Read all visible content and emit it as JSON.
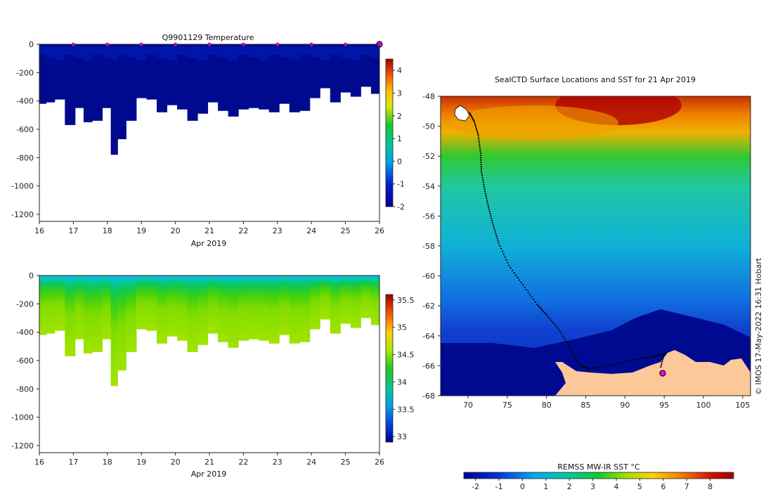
{
  "chart_data": [
    {
      "type": "heatmap",
      "title": "Q9901129  Temperature",
      "xlabel": "Apr 2019",
      "ylabel": "",
      "xlim": [
        16,
        26
      ],
      "ylim": [
        -1250,
        0
      ],
      "x_ticks": [
        "16",
        "17",
        "18",
        "19",
        "20",
        "21",
        "22",
        "23",
        "24",
        "25",
        "26"
      ],
      "y_ticks": [
        "0",
        "-200",
        "-400",
        "-600",
        "-800",
        "-1000",
        "-1200"
      ],
      "colorbar": {
        "range": [
          -2,
          4.5
        ],
        "ticks": [
          "4",
          "3",
          "2",
          "1",
          "0",
          "-1",
          "-2"
        ]
      },
      "profile_marker_days": [
        17,
        18,
        19,
        20,
        21,
        22,
        23,
        24,
        25
      ],
      "latest_profile_day": 26,
      "profile_days": [
        16.1,
        16.3,
        16.6,
        16.9,
        17.2,
        17.4,
        17.7,
        18.0,
        18.2,
        18.4,
        18.7,
        19.0,
        19.3,
        19.6,
        19.9,
        20.2,
        20.5,
        20.8,
        21.1,
        21.4,
        21.7,
        22.0,
        22.3,
        22.6,
        22.9,
        23.2,
        23.5,
        23.8,
        24.1,
        24.4,
        24.7,
        25.0,
        25.3,
        25.6,
        25.9
      ],
      "profile_max_depths": [
        420,
        410,
        390,
        570,
        450,
        550,
        540,
        450,
        780,
        670,
        540,
        380,
        390,
        480,
        430,
        460,
        540,
        490,
        410,
        470,
        510,
        460,
        450,
        460,
        480,
        420,
        480,
        470,
        380,
        310,
        410,
        340,
        370,
        300,
        350
      ]
    },
    {
      "type": "heatmap",
      "title": "",
      "xlabel": "Apr 2019",
      "ylabel": "",
      "xlim": [
        16,
        26
      ],
      "ylim": [
        -1250,
        0
      ],
      "x_ticks": [
        "16",
        "17",
        "18",
        "19",
        "20",
        "21",
        "22",
        "23",
        "24",
        "25",
        "26"
      ],
      "y_ticks": [
        "0",
        "-200",
        "-400",
        "-600",
        "-800",
        "-1000",
        "-1200"
      ],
      "colorbar": {
        "range": [
          32.9,
          35.6
        ],
        "ticks": [
          "35.5",
          "35",
          "34.5",
          "34",
          "33.5",
          "33"
        ]
      },
      "profile_days": [
        16.1,
        16.3,
        16.6,
        16.9,
        17.2,
        17.4,
        17.7,
        18.0,
        18.2,
        18.4,
        18.7,
        19.0,
        19.3,
        19.6,
        19.9,
        20.2,
        20.5,
        20.8,
        21.1,
        21.4,
        21.7,
        22.0,
        22.3,
        22.6,
        22.9,
        23.2,
        23.5,
        23.8,
        24.1,
        24.4,
        24.7,
        25.0,
        25.3,
        25.6,
        25.9
      ],
      "profile_max_depths": [
        420,
        410,
        390,
        570,
        450,
        550,
        540,
        450,
        780,
        670,
        540,
        380,
        390,
        480,
        430,
        460,
        540,
        490,
        410,
        470,
        510,
        460,
        450,
        460,
        480,
        420,
        480,
        470,
        380,
        310,
        410,
        340,
        370,
        300,
        350
      ]
    },
    {
      "type": "heatmap",
      "title": "SealCTD Surface Locations and SST for 21 Apr 2019",
      "xlabel": "",
      "ylabel": "",
      "xlim": [
        66.5,
        106
      ],
      "ylim": [
        -68,
        -48
      ],
      "x_ticks": [
        "70",
        "75",
        "80",
        "85",
        "90",
        "95",
        "100",
        "105"
      ],
      "y_ticks": [
        "-48",
        "-50",
        "-52",
        "-54",
        "-56",
        "-58",
        "-60",
        "-62",
        "-64",
        "-66",
        "-68"
      ],
      "colorbar": {
        "label": "REMSS MW-IR SST °C",
        "range": [
          -2.5,
          9
        ],
        "ticks": [
          "-2",
          "-1",
          "0",
          "1",
          "2",
          "3",
          "4",
          "5",
          "6",
          "7",
          "8"
        ]
      },
      "track": [
        [
          70.2,
          -49.1
        ],
        [
          70.8,
          -49.7
        ],
        [
          71.3,
          -50.6
        ],
        [
          71.6,
          -51.8
        ],
        [
          71.7,
          -53
        ],
        [
          72.1,
          -54.2
        ],
        [
          72.6,
          -55.4
        ],
        [
          73.2,
          -56.6
        ],
        [
          73.9,
          -57.8
        ],
        [
          75.2,
          -59.3
        ],
        [
          77,
          -60.6
        ],
        [
          78.8,
          -61.9
        ],
        [
          80,
          -62.6
        ],
        [
          81.6,
          -63.6
        ],
        [
          83,
          -64.8
        ],
        [
          84.3,
          -66
        ],
        [
          85.5,
          -66.2
        ],
        [
          88,
          -66
        ],
        [
          91,
          -65.6
        ],
        [
          93.5,
          -65.4
        ],
        [
          95,
          -65.2
        ],
        [
          94.5,
          -66.2
        ]
      ],
      "latest_position": [
        94.8,
        -66.5
      ]
    }
  ],
  "credit": "© IMOS 17-May-2022 16:31 Hobart"
}
